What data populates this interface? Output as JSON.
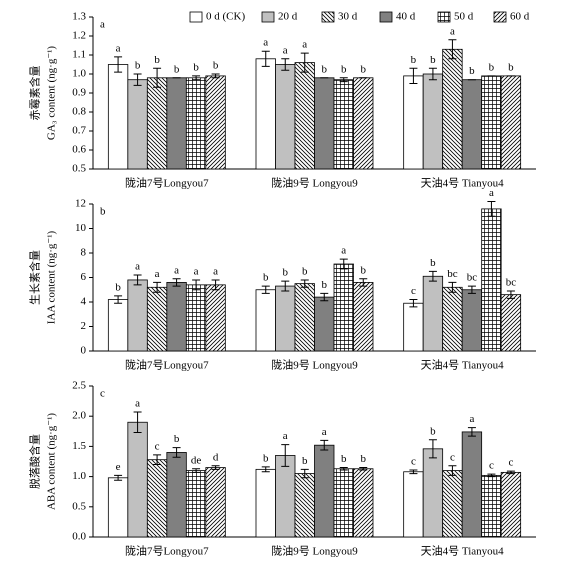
{
  "legend": {
    "position": "top-right",
    "entries": [
      {
        "name": "0 d (CK)",
        "color": "#ffffff"
      },
      {
        "name": "20 d",
        "color": "#c0c0c0"
      },
      {
        "name": "30 d",
        "color": "#ffffff",
        "hatch": "back-diagonal"
      },
      {
        "name": "40 d",
        "color": "#808080"
      },
      {
        "name": "50 d",
        "color": "#ffffff",
        "hatch": "grid"
      },
      {
        "name": "60 d",
        "color": "#ffffff",
        "hatch": "forward-diagonal"
      }
    ]
  },
  "chart_data": [
    {
      "type": "bar",
      "panel_label": "a",
      "ylabel_cn": "赤霉素含量",
      "ylabel": "GA₃ content (ng·g⁻¹)",
      "categories": [
        "陇油7号Longyou7",
        "陇油9号 Longyou9",
        "天油4号 Tianyou4"
      ],
      "ylim": [
        0.5,
        1.3
      ],
      "yticks": [
        0.5,
        0.6,
        0.7,
        0.8,
        0.9,
        {
          "value": 1,
          "label": "1.0"
        },
        1.1,
        1.2,
        1.3
      ],
      "series": [
        {
          "values": [
            1.05,
            1.08,
            0.99
          ],
          "errors": [
            0.04,
            0.04,
            0.04
          ],
          "letters": [
            "a",
            "a",
            "b"
          ]
        },
        {
          "values": [
            0.97,
            1.05,
            1.0
          ],
          "errors": [
            0.03,
            0.03,
            0.03
          ],
          "letters": [
            "b",
            "a",
            "b"
          ]
        },
        {
          "values": [
            0.98,
            1.06,
            1.13
          ],
          "errors": [
            0.05,
            0.05,
            0.05
          ],
          "letters": [
            "b",
            "a",
            "a"
          ]
        },
        {
          "values": [
            0.98,
            0.98,
            0.97
          ],
          "errors": [
            0,
            0,
            0
          ],
          "letters": [
            "b",
            "b",
            "b"
          ]
        },
        {
          "values": [
            0.98,
            0.97,
            0.99
          ],
          "errors": [
            0.01,
            0.01,
            0
          ],
          "letters": [
            "b",
            "b",
            "b"
          ]
        },
        {
          "values": [
            0.99,
            0.98,
            0.99
          ],
          "errors": [
            0.01,
            0,
            0
          ],
          "letters": [
            "b",
            "b",
            "b"
          ]
        }
      ]
    },
    {
      "type": "bar",
      "panel_label": "b",
      "ylabel_cn": "生长素含量",
      "ylabel": "IAA content (ng·g⁻¹)",
      "categories": [
        "陇油7号Longyou7",
        "陇油9号 Longyou9",
        "天油4号 Tianyou4"
      ],
      "ylim": [
        0,
        12
      ],
      "yticks": [
        0,
        2,
        4,
        6,
        8,
        10,
        12
      ],
      "series": [
        {
          "values": [
            4.2,
            5.0,
            3.9
          ],
          "errors": [
            0.3,
            0.3,
            0.3
          ],
          "letters": [
            "b",
            "b",
            "c"
          ]
        },
        {
          "values": [
            5.8,
            5.3,
            6.1
          ],
          "errors": [
            0.4,
            0.4,
            0.4
          ],
          "letters": [
            "a",
            "b",
            "b"
          ]
        },
        {
          "values": [
            5.2,
            5.5,
            5.2
          ],
          "errors": [
            0.4,
            0.3,
            0.4
          ],
          "letters": [
            "a",
            "b",
            "bc"
          ]
        },
        {
          "values": [
            5.6,
            4.4,
            5.0
          ],
          "errors": [
            0.3,
            0.3,
            0.3
          ],
          "letters": [
            "a",
            "b",
            "bc"
          ]
        },
        {
          "values": [
            5.4,
            7.1,
            11.6
          ],
          "errors": [
            0.4,
            0.4,
            0.6
          ],
          "letters": [
            "a",
            "a",
            "a"
          ]
        },
        {
          "values": [
            5.4,
            5.6,
            4.6
          ],
          "errors": [
            0.4,
            0.3,
            0.3
          ],
          "letters": [
            "a",
            "b",
            "bc"
          ]
        }
      ]
    },
    {
      "type": "bar",
      "panel_label": "c",
      "ylabel_cn": "脱落酸含量",
      "ylabel": "ABA content (ng·g⁻¹)",
      "categories": [
        "陇油7号Longyou7",
        "陇油9号 Longyou9",
        "天油4号 Tianyou4"
      ],
      "ylim": [
        0,
        2.5
      ],
      "yticks": [
        {
          "value": 0,
          "label": "0.0"
        },
        0.5,
        {
          "value": 1,
          "label": "1.0"
        },
        1.5,
        {
          "value": 2,
          "label": "2.0"
        },
        2.5
      ],
      "series": [
        {
          "values": [
            0.98,
            1.12,
            1.08
          ],
          "errors": [
            0.04,
            0.04,
            0.03
          ],
          "letters": [
            "e",
            "b",
            "c"
          ]
        },
        {
          "values": [
            1.9,
            1.35,
            1.46
          ],
          "errors": [
            0.17,
            0.18,
            0.15
          ],
          "letters": [
            "a",
            "a",
            "b"
          ]
        },
        {
          "values": [
            1.28,
            1.05,
            1.1
          ],
          "errors": [
            0.08,
            0.07,
            0.08
          ],
          "letters": [
            "c",
            "b",
            "c"
          ]
        },
        {
          "values": [
            1.4,
            1.52,
            1.74
          ],
          "errors": [
            0.08,
            0.08,
            0.07
          ],
          "letters": [
            "b",
            "a",
            "a"
          ]
        },
        {
          "values": [
            1.1,
            1.13,
            1.02
          ],
          "errors": [
            0.03,
            0.02,
            0.02
          ],
          "letters": [
            "de",
            "b",
            "c"
          ]
        },
        {
          "values": [
            1.15,
            1.13,
            1.07
          ],
          "errors": [
            0.03,
            0.02,
            0.02
          ],
          "letters": [
            "d",
            "b",
            "c"
          ]
        }
      ]
    }
  ]
}
